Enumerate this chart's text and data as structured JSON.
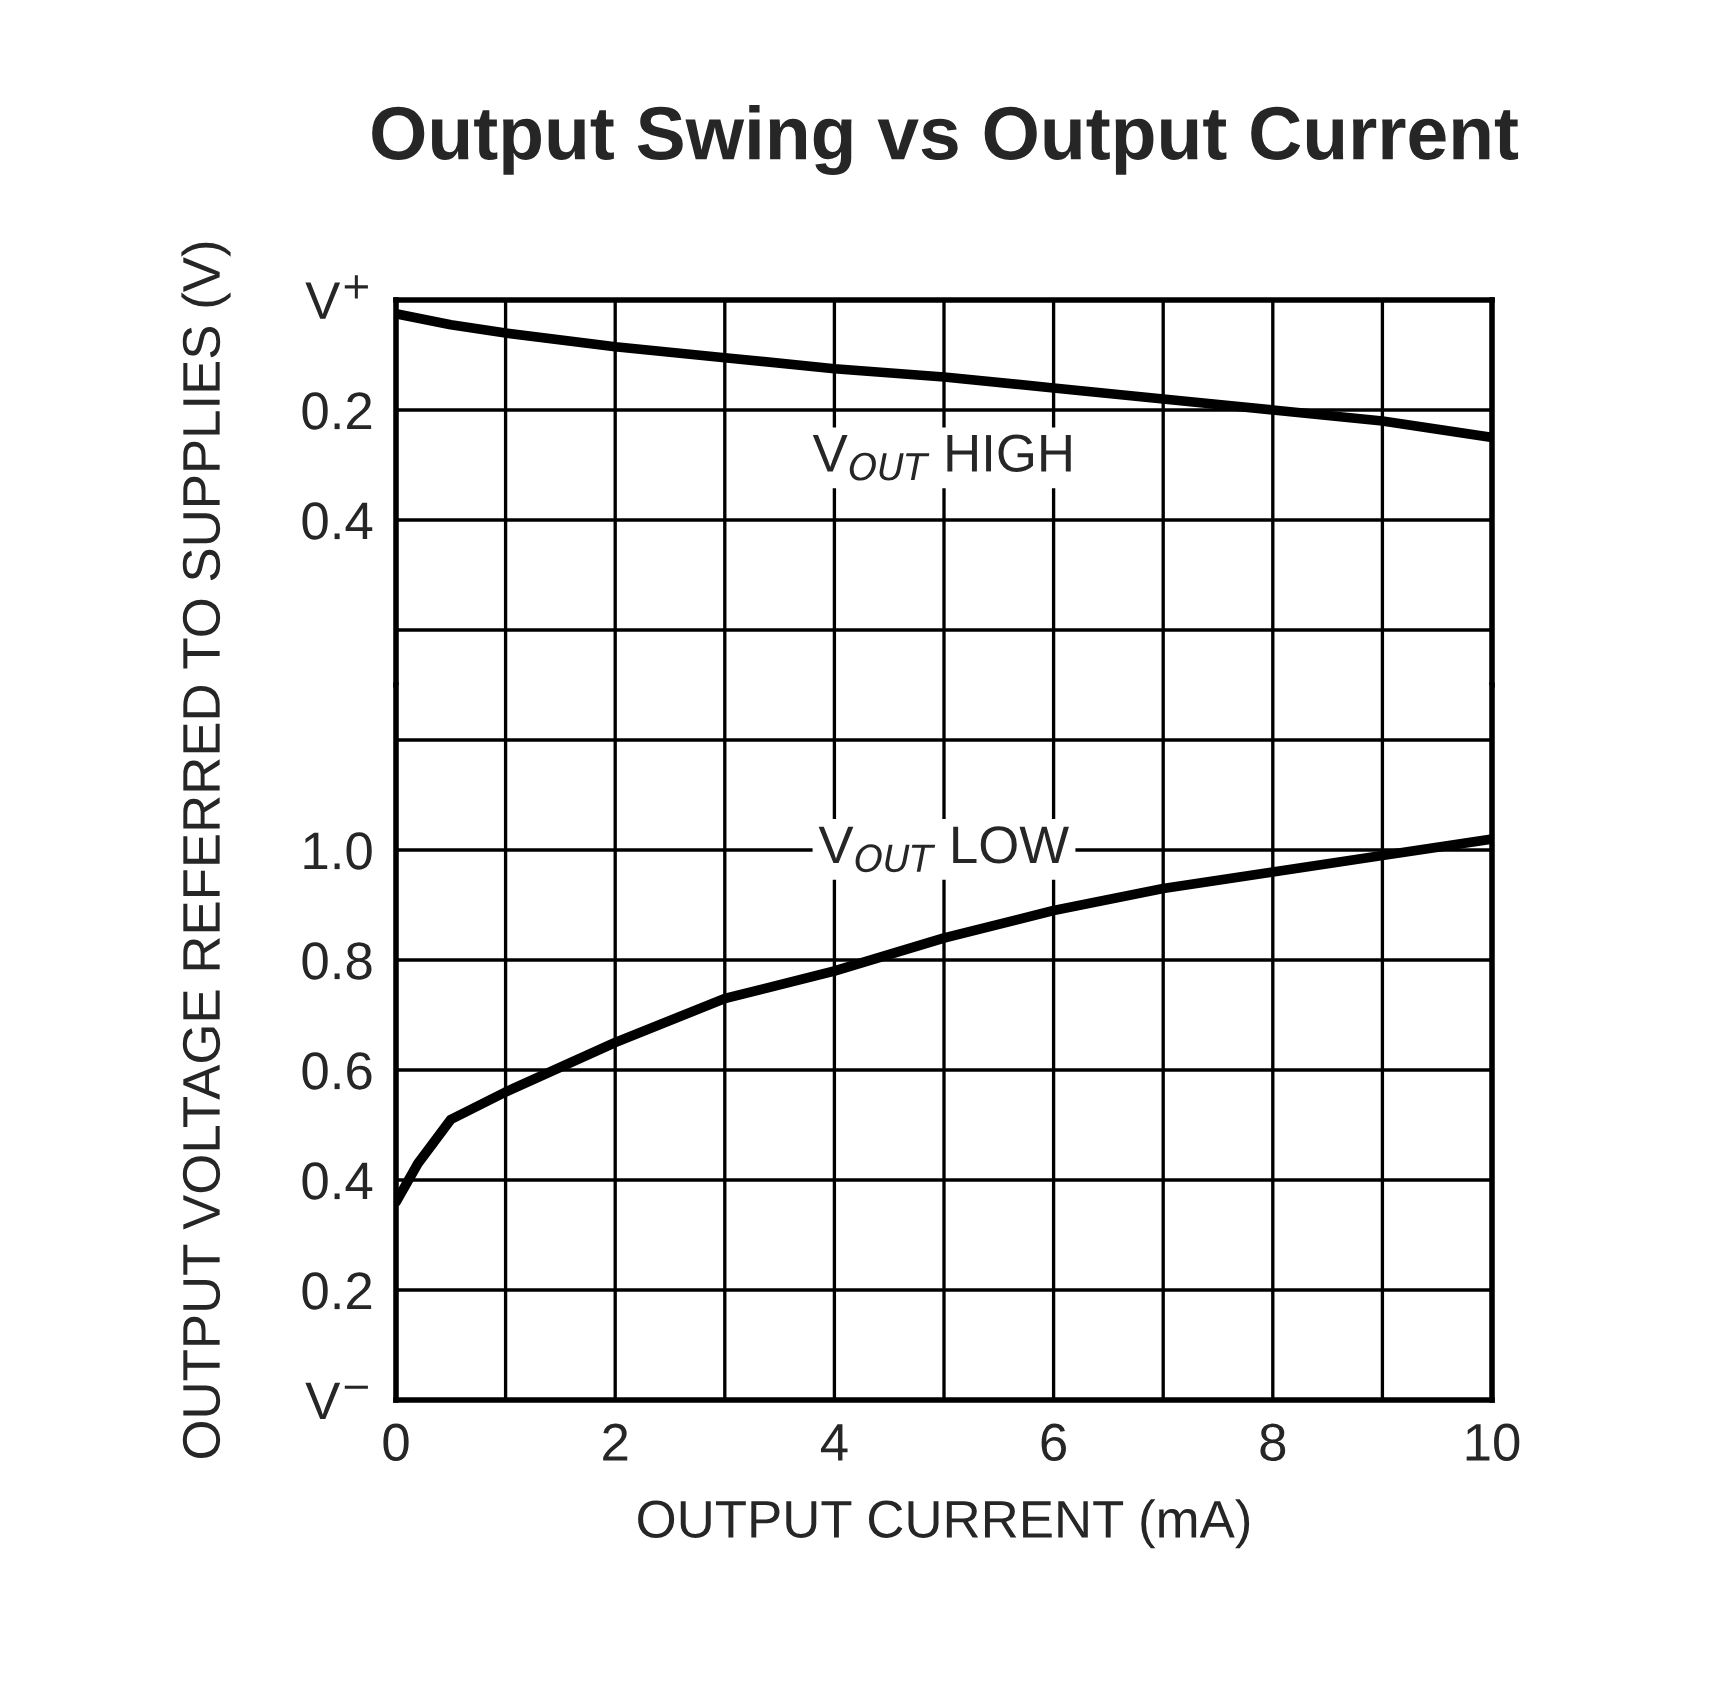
{
  "chart_data": [
    {
      "type": "line",
      "title": "Output Swing vs Output Current",
      "x": [
        0,
        0.5,
        1,
        2,
        3,
        4,
        5,
        6,
        7,
        8,
        9,
        10
      ],
      "series": [
        {
          "color": "#000000",
          "values": [
            0.025,
            0.045,
            0.06,
            0.085,
            0.105,
            0.125,
            0.14,
            0.16,
            0.18,
            0.2,
            0.22,
            0.25
          ]
        }
      ],
      "xlim": [
        0,
        10
      ],
      "xticks": [
        0,
        {
          "value": 1,
          "label": null
        },
        2,
        {
          "value": 3,
          "label": null
        },
        4,
        {
          "value": 5,
          "label": null
        },
        6,
        {
          "value": 7,
          "label": null
        },
        8,
        {
          "value": 9,
          "label": null
        },
        10
      ],
      "ylim": [
        0.7,
        0
      ],
      "yticks": [
        {
          "value": 0,
          "label": "V$^{+}$"
        },
        0.2,
        0.4,
        {
          "value": 0.6,
          "label": null
        }
      ],
      "annotations": [
        "V$_{OUT}$ HIGH"
      ],
      "grid": true,
      "tick_labels": "y",
      "marker": "none"
    },
    {
      "type": "line",
      "x": [
        0,
        0.2,
        0.5,
        1,
        2,
        3,
        4,
        5,
        6,
        7,
        8,
        9,
        10
      ],
      "series": [
        {
          "color": "#000000",
          "values": [
            0.36,
            0.43,
            0.51,
            0.56,
            0.65,
            0.73,
            0.78,
            0.84,
            0.89,
            0.93,
            0.96,
            0.99,
            1.02
          ]
        }
      ],
      "xlabel": "OUTPUT CURRENT (mA)",
      "ylabel": "OUTPUT VOLTAGE REFERRED TO SUPPLIES (V)",
      "xlim": [
        0,
        10
      ],
      "xticks": [
        0,
        {
          "value": 1,
          "label": null
        },
        2,
        {
          "value": 3,
          "label": null
        },
        4,
        {
          "value": 5,
          "label": null
        },
        6,
        {
          "value": 7,
          "label": null
        },
        8,
        {
          "value": 9,
          "label": null
        },
        10
      ],
      "ylim": [
        0,
        1.3
      ],
      "yticks": [
        {
          "value": 0,
          "label": "V$^{−}$"
        },
        0.2,
        0.4,
        0.6,
        0.8,
        {
          "value": 1.0,
          "label": "1.0"
        },
        {
          "value": 1.2,
          "label": null
        }
      ],
      "annotations": [
        "V$_{OUT}$ LOW"
      ],
      "grid": true,
      "marker": "none"
    }
  ]
}
